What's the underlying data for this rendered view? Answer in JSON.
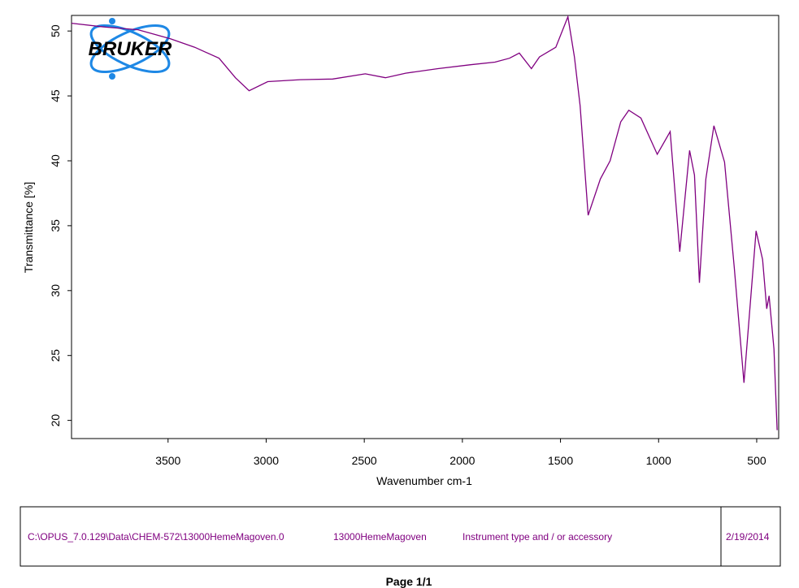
{
  "chart_data": {
    "type": "line",
    "x_label": "Wavenumber cm-1",
    "y_label": "Transmittance [%]",
    "x": [
      3992,
      3818,
      3653,
      3488,
      3364,
      3240,
      3157,
      3087,
      2992,
      2826,
      2661,
      2495,
      2392,
      2289,
      2124,
      1958,
      1834,
      1760,
      1710,
      1648,
      1607,
      1524,
      1462,
      1429,
      1400,
      1359,
      1297,
      1247,
      1193,
      1152,
      1090,
      1007,
      941,
      892,
      842,
      817,
      792,
      759,
      718,
      664,
      614,
      565,
      503,
      470,
      449,
      437,
      412,
      396
    ],
    "series": [
      {
        "color": "#800080",
        "values": [
          50.6,
          50.3,
          50.1,
          49.4,
          48.75,
          47.9,
          46.4,
          45.4,
          46.1,
          46.25,
          46.3,
          46.7,
          46.4,
          46.75,
          47.1,
          47.4,
          47.6,
          47.9,
          48.3,
          47.1,
          48.0,
          48.75,
          51.1,
          48.0,
          44.25,
          35.8,
          38.6,
          40.0,
          43.0,
          43.9,
          43.3,
          40.5,
          42.25,
          33.0,
          40.8,
          38.9,
          30.6,
          38.6,
          42.7,
          39.9,
          31.75,
          22.9,
          34.6,
          32.4,
          28.6,
          29.6,
          25.5,
          19.25
        ]
      }
    ],
    "xlim": [
      3992,
      388
    ],
    "xticks": [
      3500,
      3000,
      2500,
      2000,
      1500,
      1000,
      500
    ],
    "ylim": [
      18.6,
      51.2
    ],
    "yticks": [
      20,
      25,
      30,
      35,
      40,
      45,
      50
    ],
    "grid": false
  },
  "logo": {
    "text": "BRUKER"
  },
  "footer": {
    "path": "C:\\OPUS_7.0.129\\Data\\CHEM-572\\13000HemeMagoven.0",
    "sample": "13000HemeMagoven",
    "instrument": "Instrument type and / or accessory",
    "date": "2/19/2014",
    "page": "Page 1/1"
  }
}
